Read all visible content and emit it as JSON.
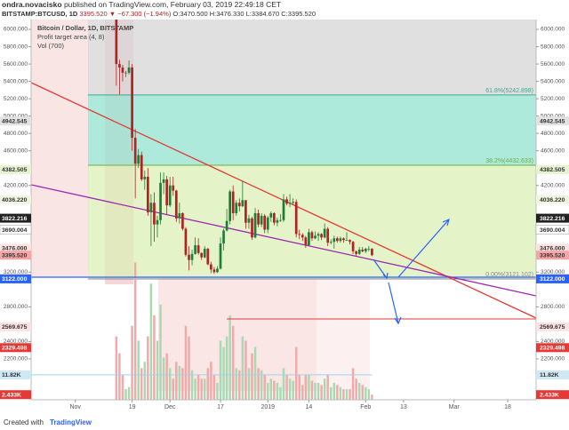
{
  "chart_data": {
    "type": "candlestick",
    "header": {
      "author": "ondra.novacisko",
      "published": "published on TradingView.com, February 03, 2019 22:49:18 CET",
      "symbol": "BITSTAMP:BTCUSD, 1D",
      "last": "3395.520",
      "change": "▼ −67.300 (−1.94%)",
      "open": "O:3470.500",
      "high": "H:3476.330",
      "low": "L:3384.670",
      "close": "C:3395.520"
    },
    "legend": [
      "Bitcoin / Dollar, 1D, BITSTAMP",
      "Profit target area (4, 8)",
      "Vol (700)"
    ],
    "footer": [
      "Created with",
      "TradingView"
    ],
    "xlim": [
      "2018-10-18",
      "2019-03-27"
    ],
    "xticks": [
      {
        "value": "2018-11-01",
        "label": "Nov"
      },
      {
        "value": "2018-11-19",
        "label": "19"
      },
      {
        "value": "2018-12-01",
        "label": "Dec"
      },
      {
        "value": "2018-12-17",
        "label": "17"
      },
      {
        "value": "2019-01-01",
        "label": "2019"
      },
      {
        "value": "2019-01-14",
        "label": "14"
      },
      {
        "value": "2019-02-01",
        "label": "Feb"
      },
      {
        "value": "2019-02-13",
        "label": "13"
      },
      {
        "value": "2019-03-01",
        "label": "Mar"
      },
      {
        "value": "2019-03-18",
        "label": "18"
      }
    ],
    "ylim": [
      1728,
      6113
    ],
    "yticks": [
      {
        "value": 6000,
        "label": "6000.000"
      },
      {
        "value": 5800,
        "label": "5800.000"
      },
      {
        "value": 5600,
        "label": "5600.000"
      },
      {
        "value": 5400,
        "label": "5400.000"
      },
      {
        "value": 5200,
        "label": "5200.000"
      },
      {
        "value": 5000,
        "label": "5000.000"
      },
      {
        "value": 4800,
        "label": "4800.000"
      },
      {
        "value": 4600,
        "label": "4600.000"
      },
      {
        "value": 4200,
        "label": "4200.000"
      },
      {
        "value": 3200,
        "label": "3200.000"
      },
      {
        "value": 2800,
        "label": "2800.000"
      },
      {
        "value": 2400,
        "label": "2400.000"
      },
      {
        "value": 2200,
        "label": "2200.000"
      }
    ],
    "y2lim": [
      0,
      180000
    ],
    "up_color": "#1f7d3a",
    "down_color": "#b22222",
    "volume_up_color": "#a9d9b3",
    "volume_down_color": "#f2a9a9",
    "dates": [
      "2018-11-14",
      "2018-11-15",
      "2018-11-16",
      "2018-11-17",
      "2018-11-18",
      "2018-11-19",
      "2018-11-20",
      "2018-11-21",
      "2018-11-22",
      "2018-11-23",
      "2018-11-24",
      "2018-11-25",
      "2018-11-26",
      "2018-11-27",
      "2018-11-28",
      "2018-11-29",
      "2018-11-30",
      "2018-12-01",
      "2018-12-02",
      "2018-12-03",
      "2018-12-04",
      "2018-12-05",
      "2018-12-06",
      "2018-12-07",
      "2018-12-08",
      "2018-12-09",
      "2018-12-10",
      "2018-12-11",
      "2018-12-12",
      "2018-12-13",
      "2018-12-14",
      "2018-12-15",
      "2018-12-16",
      "2018-12-17",
      "2018-12-18",
      "2018-12-19",
      "2018-12-20",
      "2018-12-21",
      "2018-12-22",
      "2018-12-23",
      "2018-12-24",
      "2018-12-25",
      "2018-12-26",
      "2018-12-27",
      "2018-12-28",
      "2018-12-29",
      "2018-12-30",
      "2018-12-31",
      "2019-01-01",
      "2019-01-02",
      "2019-01-03",
      "2019-01-04",
      "2019-01-05",
      "2019-01-06",
      "2019-01-07",
      "2019-01-08",
      "2019-01-09",
      "2019-01-10",
      "2019-01-11",
      "2019-01-12",
      "2019-01-13",
      "2019-01-14",
      "2019-01-15",
      "2019-01-16",
      "2019-01-17",
      "2019-01-18",
      "2019-01-19",
      "2019-01-20",
      "2019-01-21",
      "2019-01-22",
      "2019-01-23",
      "2019-01-24",
      "2019-01-25",
      "2019-01-26",
      "2019-01-27",
      "2019-01-28",
      "2019-01-29",
      "2019-01-30",
      "2019-01-31",
      "2019-02-01",
      "2019-02-02",
      "2019-02-03"
    ],
    "ohlc": [
      [
        6350,
        6380,
        5350,
        5600
      ],
      [
        5600,
        5650,
        5250,
        5560
      ],
      [
        5560,
        5590,
        5400,
        5500
      ],
      [
        5500,
        5520,
        5450,
        5500
      ],
      [
        5500,
        5640,
        5480,
        5560
      ],
      [
        5560,
        5600,
        4600,
        4750
      ],
      [
        4750,
        4850,
        4050,
        4450
      ],
      [
        4450,
        4620,
        4400,
        4550
      ],
      [
        4550,
        4590,
        4250,
        4270
      ],
      [
        4270,
        4370,
        4150,
        4300
      ],
      [
        4300,
        4400,
        3850,
        3890
      ],
      [
        3890,
        4100,
        3500,
        4000
      ],
      [
        4000,
        4120,
        3550,
        3750
      ],
      [
        3750,
        3850,
        3600,
        3800
      ],
      [
        3800,
        4350,
        3750,
        4230
      ],
      [
        4230,
        4350,
        4100,
        4270
      ],
      [
        4270,
        4310,
        3870,
        3970
      ],
      [
        3970,
        4300,
        3950,
        4200
      ],
      [
        4200,
        4300,
        4080,
        4140
      ],
      [
        4140,
        4150,
        3780,
        3820
      ],
      [
        3820,
        4000,
        3760,
        3880
      ],
      [
        3880,
        3890,
        3680,
        3700
      ],
      [
        3700,
        3720,
        3380,
        3400
      ],
      [
        3400,
        3500,
        3220,
        3340
      ],
      [
        3340,
        3460,
        3280,
        3410
      ],
      [
        3410,
        3600,
        3400,
        3510
      ],
      [
        3510,
        3590,
        3400,
        3420
      ],
      [
        3420,
        3430,
        3340,
        3370
      ],
      [
        3370,
        3500,
        3360,
        3470
      ],
      [
        3470,
        3480,
        3280,
        3290
      ],
      [
        3290,
        3320,
        3190,
        3230
      ],
      [
        3230,
        3260,
        3180,
        3200
      ],
      [
        3200,
        3270,
        3190,
        3240
      ],
      [
        3240,
        3600,
        3230,
        3530
      ],
      [
        3530,
        3700,
        3450,
        3680
      ],
      [
        3680,
        3930,
        3670,
        3790
      ],
      [
        3790,
        4150,
        3750,
        4130
      ],
      [
        4130,
        4200,
        3800,
        3880
      ],
      [
        3880,
        4030,
        3850,
        4000
      ],
      [
        4000,
        4050,
        3900,
        3960
      ],
      [
        3960,
        4250,
        3950,
        4030
      ],
      [
        4030,
        4030,
        3700,
        3770
      ],
      [
        3770,
        3860,
        3700,
        3820
      ],
      [
        3820,
        3840,
        3570,
        3600
      ],
      [
        3600,
        3940,
        3590,
        3880
      ],
      [
        3880,
        3920,
        3720,
        3750
      ],
      [
        3750,
        3880,
        3720,
        3850
      ],
      [
        3850,
        3870,
        3650,
        3690
      ],
      [
        3690,
        3850,
        3650,
        3830
      ],
      [
        3830,
        3900,
        3780,
        3880
      ],
      [
        3880,
        3890,
        3740,
        3770
      ],
      [
        3770,
        3830,
        3730,
        3800
      ],
      [
        3800,
        3870,
        3780,
        3800
      ],
      [
        3800,
        4100,
        3780,
        4040
      ],
      [
        4040,
        4070,
        3970,
        3990
      ],
      [
        3990,
        4100,
        3950,
        4000
      ],
      [
        4000,
        4050,
        3980,
        4010
      ],
      [
        4010,
        4040,
        3600,
        3640
      ],
      [
        3640,
        3690,
        3580,
        3630
      ],
      [
        3630,
        3650,
        3560,
        3600
      ],
      [
        3600,
        3620,
        3480,
        3510
      ],
      [
        3510,
        3700,
        3500,
        3660
      ],
      [
        3660,
        3680,
        3560,
        3590
      ],
      [
        3590,
        3670,
        3580,
        3620
      ],
      [
        3620,
        3660,
        3560,
        3640
      ],
      [
        3640,
        3650,
        3570,
        3600
      ],
      [
        3600,
        3760,
        3590,
        3700
      ],
      [
        3700,
        3720,
        3500,
        3540
      ],
      [
        3540,
        3580,
        3520,
        3550
      ],
      [
        3550,
        3620,
        3470,
        3590
      ],
      [
        3590,
        3610,
        3540,
        3560
      ],
      [
        3560,
        3610,
        3540,
        3590
      ],
      [
        3590,
        3600,
        3540,
        3570
      ],
      [
        3570,
        3660,
        3560,
        3570
      ],
      [
        3570,
        3580,
        3520,
        3550
      ],
      [
        3550,
        3560,
        3410,
        3440
      ],
      [
        3440,
        3450,
        3380,
        3410
      ],
      [
        3410,
        3490,
        3400,
        3460
      ],
      [
        3460,
        3490,
        3430,
        3440
      ],
      [
        3440,
        3480,
        3420,
        3470
      ],
      [
        3470,
        3500,
        3440,
        3470
      ],
      [
        3470.5,
        3476.33,
        3384.67,
        3395.52
      ]
    ],
    "volume": [
      30000,
      22000,
      12000,
      5000,
      6000,
      35000,
      65000,
      28000,
      15000,
      18000,
      30000,
      55000,
      40000,
      28000,
      45000,
      20000,
      22000,
      15000,
      10000,
      18000,
      16000,
      15000,
      35000,
      30000,
      14000,
      10000,
      12000,
      10000,
      10000,
      15000,
      18000,
      12000,
      8000,
      28000,
      25000,
      30000,
      40000,
      35000,
      15000,
      14000,
      30000,
      28000,
      15000,
      22000,
      25000,
      15000,
      14000,
      12000,
      8000,
      10000,
      9000,
      8000,
      6000,
      15000,
      12000,
      10000,
      9000,
      25000,
      12000,
      7000,
      12000,
      12000,
      9000,
      8000,
      8000,
      7000,
      10000,
      12000,
      6000,
      8000,
      7000,
      6000,
      5000,
      5000,
      5000,
      15000,
      10000,
      8000,
      7000,
      6000,
      5000,
      2433
    ],
    "fib": {
      "start": "2018-11-05",
      "levels": [
        {
          "value": 3121.102,
          "label": "0.00%(3121.102)",
          "color": "#dbefb6",
          "text_color": "#8a8a8a"
        },
        {
          "value": 4432.633,
          "label": "38.2%(4432.633)",
          "color": "#93e3d0",
          "text_color": "#6fae3c"
        },
        {
          "value": 5242.898,
          "label": "61.8%(5242.898)",
          "color": "#d6d6d6",
          "text_color": "#3fa88f"
        }
      ]
    },
    "price_labels": [
      {
        "value": 4942.545,
        "label": "4942.545",
        "bg": "#e2e2e2",
        "fg": "#333"
      },
      {
        "value": 4382.505,
        "label": "4382.505",
        "bg": "#e6f3d2",
        "fg": "#333"
      },
      {
        "value": 4036.22,
        "label": "4036.220",
        "bg": "#eef6e2",
        "fg": "#333"
      },
      {
        "value": 3822.216,
        "label": "3822.216",
        "bg": "#222222",
        "fg": "#fff"
      },
      {
        "value": 3690.004,
        "label": "3690.004",
        "bg": "#ffffff",
        "fg": "#333"
      },
      {
        "value": 3476,
        "label": "3476.000",
        "bg": "#fde2e2",
        "fg": "#333"
      },
      {
        "value": 3395.52,
        "label": "3395.520",
        "bg": "#f4a5a5",
        "fg": "#333"
      },
      {
        "value": 3129.715,
        "label": "3129.715",
        "bg": "#f6d6d6",
        "fg": "#333"
      },
      {
        "value": 3122,
        "label": "3122.000",
        "bg": "#2962ff",
        "fg": "#fff"
      },
      {
        "value": 2569.675,
        "label": "2569.675",
        "bg": "#fbe1e1",
        "fg": "#333"
      },
      {
        "value": 2329.498,
        "label": "2329.498",
        "bg": "#e53935",
        "fg": "#fff"
      }
    ],
    "volume_labels": [
      {
        "value": 11820,
        "label": "11.82K",
        "bg": "#cfe8f5",
        "fg": "#333"
      },
      {
        "value": 2433,
        "label": "2.433K",
        "bg": "#e53935",
        "fg": "#fff"
      }
    ]
  }
}
